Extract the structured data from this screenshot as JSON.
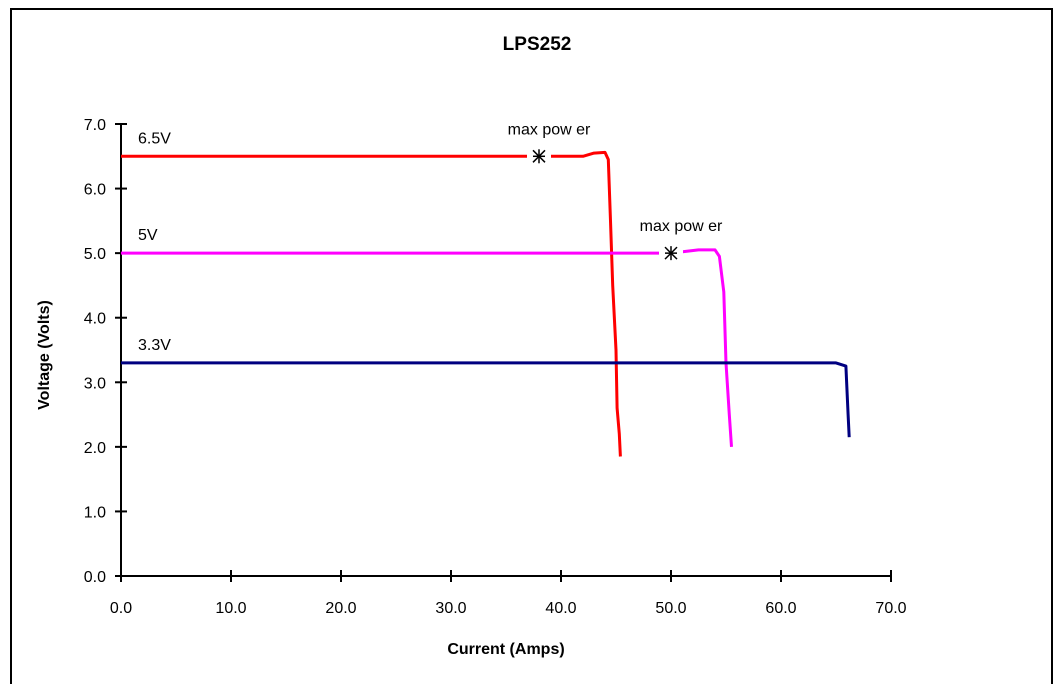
{
  "chart_data": {
    "type": "line",
    "title": "LPS252",
    "xlabel": "Current (Amps)",
    "ylabel": "Voltage (Volts)",
    "xlim": [
      0,
      70
    ],
    "ylim": [
      0,
      7
    ],
    "x_ticks": [
      "0.0",
      "10.0",
      "20.0",
      "30.0",
      "40.0",
      "50.0",
      "60.0",
      "70.0"
    ],
    "y_ticks": [
      "0.0",
      "1.0",
      "2.0",
      "3.0",
      "4.0",
      "5.0",
      "6.0",
      "7.0"
    ],
    "grid": false,
    "series": [
      {
        "name": "6.5V",
        "color": "#ff0000",
        "points": [
          [
            0,
            6.5
          ],
          [
            38,
            6.5
          ],
          [
            42,
            6.5
          ],
          [
            43,
            6.55
          ],
          [
            44,
            6.56
          ],
          [
            44.3,
            6.45
          ],
          [
            44.5,
            5.5
          ],
          [
            44.7,
            4.5
          ],
          [
            45,
            3.5
          ],
          [
            45.1,
            2.6
          ],
          [
            45.3,
            2.2
          ],
          [
            45.4,
            1.85
          ]
        ]
      },
      {
        "name": "5V",
        "color": "#ff00ff",
        "points": [
          [
            0,
            5.0
          ],
          [
            50,
            5.0
          ],
          [
            52.5,
            5.05
          ],
          [
            54,
            5.05
          ],
          [
            54.4,
            4.95
          ],
          [
            54.8,
            4.4
          ],
          [
            55.0,
            3.3
          ],
          [
            55.3,
            2.5
          ],
          [
            55.5,
            2.0
          ]
        ]
      },
      {
        "name": "3.3V",
        "color": "#000080",
        "points": [
          [
            0,
            3.3
          ],
          [
            65,
            3.3
          ],
          [
            65.9,
            3.25
          ],
          [
            66.1,
            2.5
          ],
          [
            66.2,
            2.15
          ]
        ]
      }
    ],
    "annotations": [
      {
        "text": "max pow er",
        "marker": "asterisk",
        "x": 38,
        "y": 6.5
      },
      {
        "text": "max pow er",
        "marker": "asterisk",
        "x": 50,
        "y": 5.0
      }
    ]
  }
}
